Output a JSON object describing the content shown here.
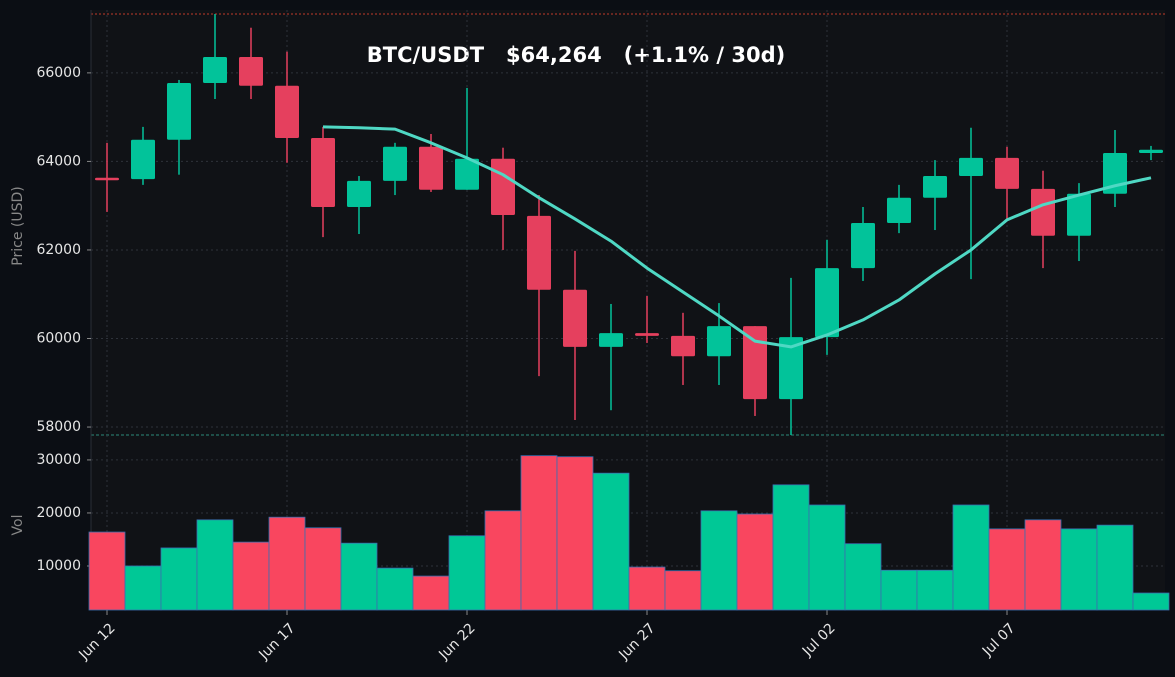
{
  "chart_data": [
    {
      "type": "candlestick",
      "title": "BTC/USDT   $64,264   (+1.1% / 30d)",
      "ylabel": "Price (USD)",
      "categories": [
        "Jun 12",
        null,
        null,
        null,
        null,
        "Jun 17",
        null,
        null,
        null,
        null,
        "Jun 22",
        null,
        null,
        null,
        null,
        "Jun 27",
        null,
        null,
        null,
        null,
        "Jul 02",
        null,
        null,
        null,
        null,
        "Jul 07",
        null,
        null,
        null,
        null
      ],
      "open": [
        63630,
        63600,
        64490,
        65770,
        66360,
        65710,
        64530,
        62970,
        63560,
        64330,
        63360,
        64060,
        62770,
        61100,
        59810,
        60120,
        60060,
        59600,
        60280,
        58630,
        60030,
        61590,
        62610,
        63180,
        63670,
        64080,
        63380,
        62320,
        63270,
        64190
      ],
      "high": [
        64420,
        64780,
        65840,
        67330,
        67020,
        66480,
        64780,
        63670,
        64420,
        64620,
        65660,
        64310,
        63240,
        61980,
        60780,
        60960,
        60580,
        60800,
        60280,
        61370,
        62230,
        62970,
        63470,
        64030,
        64760,
        64330,
        63790,
        63510,
        64710,
        64350
      ],
      "low": [
        62860,
        63470,
        63700,
        65410,
        65410,
        63970,
        62290,
        62360,
        63240,
        63310,
        63360,
        62000,
        59150,
        58160,
        58380,
        59900,
        58950,
        58950,
        58250,
        57820,
        59630,
        61300,
        62380,
        62450,
        61340,
        62680,
        61590,
        61750,
        62970,
        64030
      ],
      "close": [
        63620,
        64490,
        65770,
        66360,
        65710,
        64530,
        62970,
        63560,
        64330,
        63360,
        64060,
        62790,
        61100,
        59810,
        60120,
        60060,
        59600,
        60280,
        58630,
        60030,
        61590,
        62610,
        63180,
        63670,
        64080,
        63380,
        62320,
        63270,
        64190,
        64264
      ],
      "up_color": "#02c39a",
      "down_color": "#e5405e",
      "ma": {
        "color": "#4fd8c4",
        "values": [
          null,
          null,
          null,
          null,
          null,
          null,
          64780,
          64760,
          64730,
          64420,
          64080,
          63700,
          63180,
          62700,
          62200,
          61590,
          61050,
          60510,
          59940,
          59810,
          60080,
          60420,
          60870,
          61460,
          62000,
          62680,
          63020,
          63240,
          63450,
          63630
        ]
      },
      "ylim": [
        57820,
        67330
      ],
      "yticks": [
        58000,
        60000,
        62000,
        64000,
        66000
      ],
      "grid": true
    },
    {
      "type": "bar",
      "ylabel": "Vol",
      "values": [
        16400,
        10000,
        13400,
        18700,
        14500,
        19200,
        17200,
        14300,
        9600,
        8100,
        15700,
        20400,
        30800,
        30600,
        27500,
        9800,
        9100,
        20400,
        19800,
        25300,
        21500,
        14200,
        9200,
        9200,
        21500,
        17000,
        18700,
        17000,
        17700,
        4900
      ],
      "up_color": "#00c896",
      "down_color": "#f9465f",
      "ylim": [
        1700,
        34700
      ],
      "yticks": [
        10000,
        20000,
        30000
      ],
      "grid": true
    }
  ]
}
